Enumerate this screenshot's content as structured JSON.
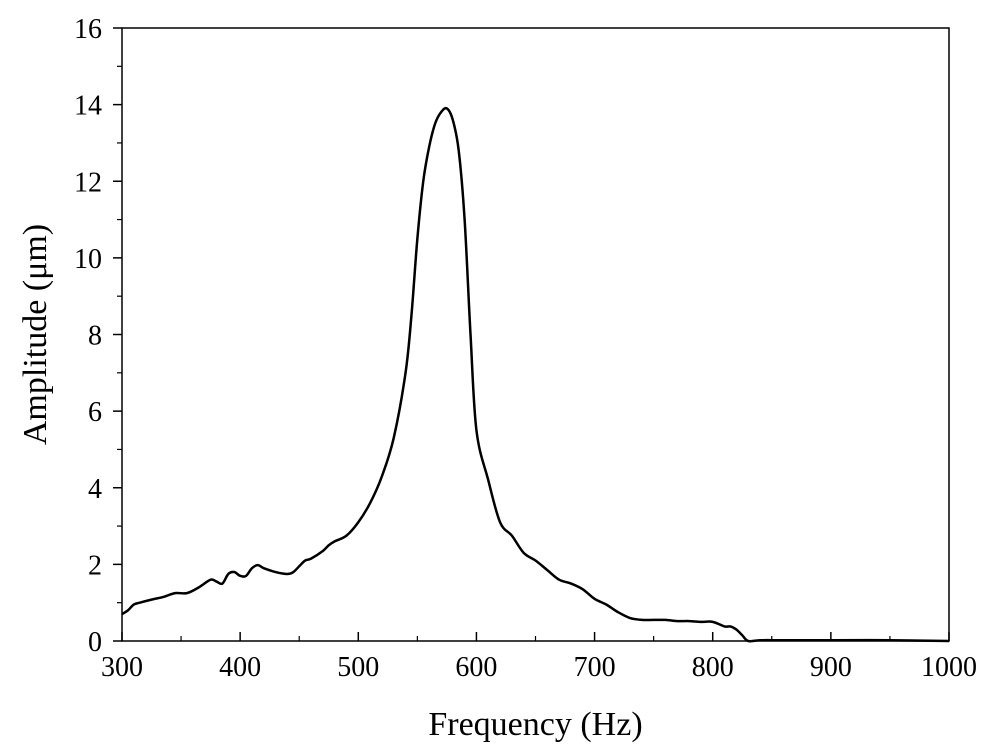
{
  "chart_data": {
    "type": "line",
    "title": "",
    "xlabel": "Frequency (Hz)",
    "ylabel": "Amplitude (μm)",
    "xlim": [
      300,
      1000
    ],
    "ylim": [
      0,
      16
    ],
    "xticks": [
      300,
      400,
      500,
      600,
      700,
      800,
      900,
      1000
    ],
    "yticks": [
      0,
      2,
      4,
      6,
      8,
      10,
      12,
      14,
      16
    ],
    "grid": false,
    "legend": "none",
    "line_color": "#000000",
    "series": [
      {
        "x": [
          300,
          305,
          310,
          315,
          325,
          335,
          345,
          355,
          365,
          375,
          380,
          385,
          390,
          395,
          400,
          405,
          410,
          415,
          420,
          430,
          440,
          445,
          450,
          455,
          460,
          470,
          475,
          480,
          490,
          500,
          510,
          520,
          530,
          540,
          545,
          550,
          555,
          560,
          565,
          570,
          575,
          580,
          585,
          590,
          595,
          600,
          610,
          620,
          630,
          640,
          650,
          660,
          670,
          680,
          690,
          700,
          710,
          720,
          730,
          740,
          750,
          760,
          770,
          780,
          790,
          800,
          810,
          815,
          820,
          825,
          830,
          840,
          860,
          900,
          950,
          1000
        ],
        "values": [
          0.7,
          0.8,
          0.95,
          1.0,
          1.08,
          1.15,
          1.25,
          1.25,
          1.4,
          1.6,
          1.55,
          1.5,
          1.75,
          1.8,
          1.7,
          1.7,
          1.9,
          1.98,
          1.9,
          1.8,
          1.75,
          1.8,
          1.95,
          2.1,
          2.15,
          2.35,
          2.5,
          2.6,
          2.75,
          3.1,
          3.6,
          4.3,
          5.3,
          7.0,
          8.5,
          10.5,
          12.0,
          12.9,
          13.5,
          13.8,
          13.9,
          13.6,
          12.8,
          11.0,
          8.0,
          5.5,
          4.2,
          3.1,
          2.75,
          2.3,
          2.1,
          1.85,
          1.6,
          1.5,
          1.35,
          1.1,
          0.95,
          0.75,
          0.6,
          0.55,
          0.55,
          0.55,
          0.52,
          0.52,
          0.5,
          0.5,
          0.38,
          0.38,
          0.3,
          0.15,
          0.0,
          0.02,
          0.02,
          0.02,
          0.02,
          0.0
        ]
      }
    ]
  }
}
